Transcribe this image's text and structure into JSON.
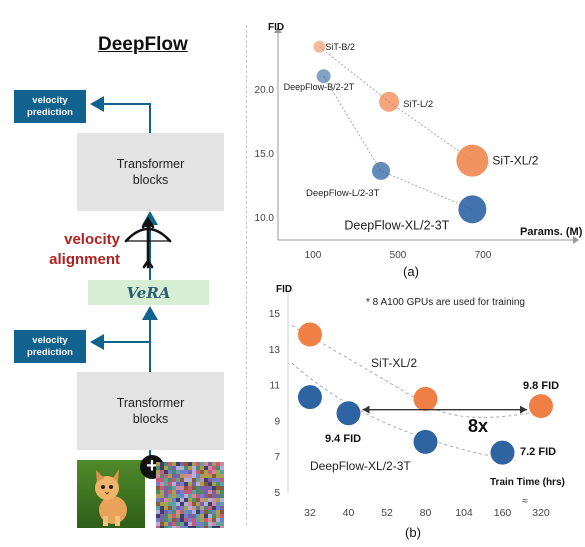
{
  "left_panel": {
    "title": "DeepFlow",
    "velocity_prediction_top": "velocity prediction",
    "transformer_blocks_top": "Transformer blocks",
    "velocity_alignment": "velocity alignment",
    "vera_label": "VeRA",
    "velocity_prediction_bottom": "velocity prediction",
    "transformer_blocks_bottom": "Transformer blocks",
    "plus_symbol": "+"
  },
  "chart_data": [
    {
      "type": "scatter",
      "panel_label": "(a)",
      "ylabel": "FID",
      "xlabel": "Params. (M)",
      "x_ticks": [
        "100",
        "500",
        "700"
      ],
      "y_ticks": [
        "10.0",
        "15.0",
        "20.0"
      ],
      "series": [
        {
          "name": "SiT",
          "color": "#ef7f45",
          "points": [
            {
              "label": "SiT-B/2",
              "x": 130,
              "y": 23.3
            },
            {
              "label": "SiT-L/2",
              "x": 458,
              "y": 19.0
            },
            {
              "label": "SiT-XL/2",
              "x": 675,
              "y": 14.4
            }
          ]
        },
        {
          "name": "DeepFlow",
          "color": "#2f64a3",
          "points": [
            {
              "label": "DeepFlow-B/2-2T",
              "x": 150,
              "y": 21.0
            },
            {
              "label": "DeepFlow-L/2-3T",
              "x": 420,
              "y": 13.6
            },
            {
              "label": "DeepFlow-XL/2-3T",
              "x": 675,
              "y": 10.6
            }
          ]
        }
      ]
    },
    {
      "type": "line",
      "panel_label": "(b)",
      "ylabel": "FID",
      "xlabel": "Train Time (hrs)",
      "annotation": "* 8 A100 GPUs are used for training",
      "categories": [
        "32",
        "40",
        "52",
        "80",
        "104",
        "160",
        "320"
      ],
      "y_ticks": [
        "5",
        "7",
        "9",
        "11",
        "13",
        "15"
      ],
      "speedup_label": "8x",
      "axis_break": "≈",
      "series": [
        {
          "name": "SiT-XL/2",
          "color": "#ef7f45",
          "points": [
            {
              "x": "32",
              "y": 13.8
            },
            {
              "x": "80",
              "y": 10.2
            },
            {
              "x": "320",
              "y": 9.8
            }
          ],
          "value_labels": [
            "9.8 FID"
          ]
        },
        {
          "name": "DeepFlow-XL/2-3T",
          "color": "#2f64a3",
          "points": [
            {
              "x": "32",
              "y": 10.3
            },
            {
              "x": "40",
              "y": 9.4
            },
            {
              "x": "80",
              "y": 7.8
            },
            {
              "x": "160",
              "y": 7.2
            }
          ],
          "value_labels": [
            "9.4 FID",
            "7.2 FID"
          ]
        }
      ]
    }
  ]
}
